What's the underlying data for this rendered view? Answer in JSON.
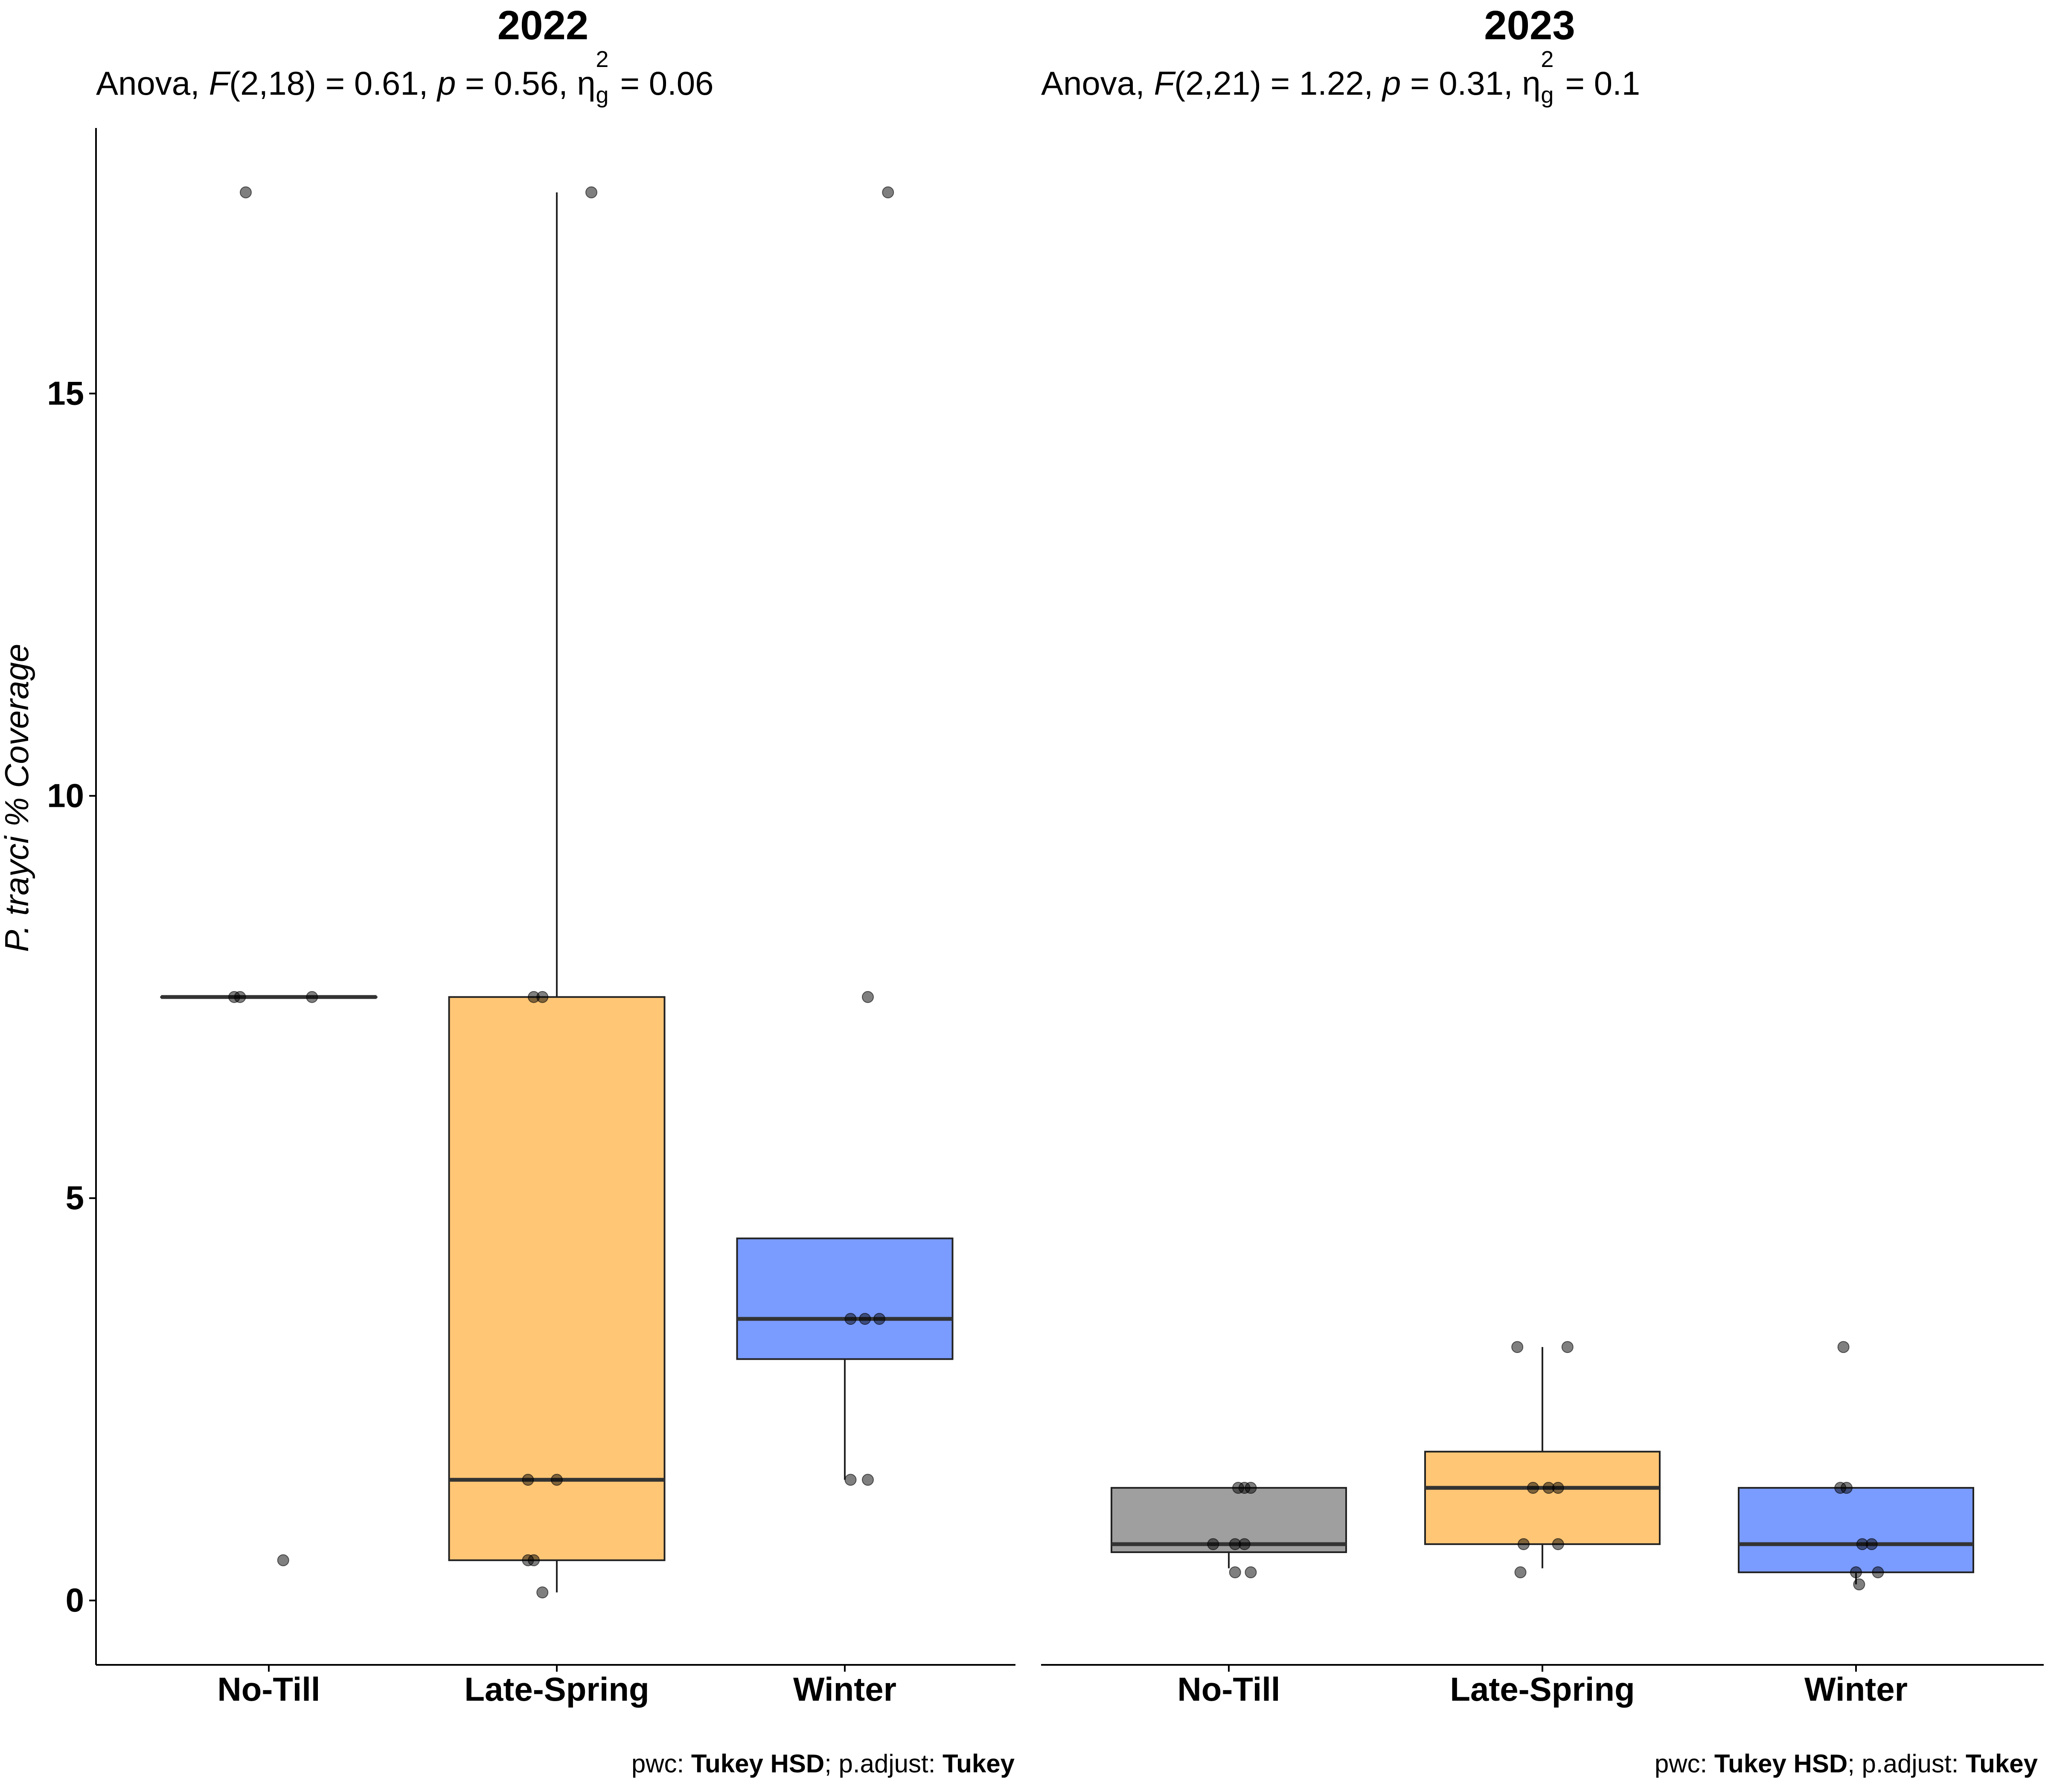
{
  "chart_data": [
    {
      "type": "box",
      "title": "2022",
      "subtitle": {
        "test": "Anova, ",
        "f_sym": "F",
        "df": "(2,18)",
        "f_val": " = 0.61, ",
        "p_sym": "p",
        "p_val": " = 0.56, ",
        "eta_sym": "η",
        "eta_sup": "2",
        "eta_sub": "g",
        "eta_val": " = 0.06"
      },
      "caption": {
        "pwc_lbl": "pwc: ",
        "pwc": "Tukey HSD",
        "adj_lbl": "; p.adjust: ",
        "adj": "Tukey"
      },
      "ylabel": "P. trayci % Coverage",
      "ylim": [
        -0.8,
        18.3
      ],
      "yticks": [
        0,
        5,
        10,
        15
      ],
      "categories": [
        "No-Till",
        "Late-Spring",
        "Winter"
      ],
      "boxes": [
        {
          "name": "No-Till",
          "color": "#7f7f7f",
          "q1": 7.5,
          "median": 7.5,
          "q3": 7.5,
          "wlo": 7.5,
          "whi": 7.5,
          "points": [
            [
              -0.08,
              17.5
            ],
            [
              -0.12,
              7.5
            ],
            [
              -0.1,
              7.5
            ],
            [
              0.15,
              7.5
            ],
            [
              0.05,
              0.5
            ]
          ]
        },
        {
          "name": "Late-Spring",
          "color": "#ffb347",
          "q1": 0.5,
          "median": 1.5,
          "q3": 7.5,
          "wlo": 0.1,
          "whi": 17.5,
          "points": [
            [
              0.12,
              17.5
            ],
            [
              -0.05,
              7.5
            ],
            [
              -0.08,
              7.5
            ],
            [
              -0.1,
              1.5
            ],
            [
              0.0,
              1.5
            ],
            [
              -0.08,
              0.5
            ],
            [
              -0.1,
              0.5
            ],
            [
              -0.05,
              0.1
            ]
          ]
        },
        {
          "name": "Winter",
          "color": "#4d79ff",
          "q1": 3.0,
          "median": 3.5,
          "q3": 4.5,
          "wlo": 1.5,
          "whi": 4.5,
          "points": [
            [
              0.15,
              17.5
            ],
            [
              0.08,
              7.5
            ],
            [
              0.02,
              3.5
            ],
            [
              0.07,
              3.5
            ],
            [
              0.12,
              3.5
            ],
            [
              0.02,
              1.5
            ],
            [
              0.08,
              1.5
            ]
          ]
        }
      ]
    },
    {
      "type": "box",
      "title": "2023",
      "subtitle": {
        "test": "Anova, ",
        "f_sym": "F",
        "df": "(2,21)",
        "f_val": " = 1.22, ",
        "p_sym": "p",
        "p_val": " = 0.31, ",
        "eta_sym": "η",
        "eta_sup": "2",
        "eta_sub": "g",
        "eta_val": " = 0.1"
      },
      "caption": {
        "pwc_lbl": "pwc: ",
        "pwc": "Tukey HSD",
        "adj_lbl": "; p.adjust: ",
        "adj": "Tukey"
      },
      "ylim": [
        -0.8,
        18.3
      ],
      "categories": [
        "No-Till",
        "Late-Spring",
        "Winter"
      ],
      "boxes": [
        {
          "name": "No-Till",
          "color": "#7f7f7f",
          "q1": 0.6,
          "median": 0.7,
          "q3": 1.4,
          "wlo": 0.4,
          "whi": 1.4,
          "points": [
            [
              0.03,
              1.4
            ],
            [
              0.05,
              1.4
            ],
            [
              0.07,
              1.4
            ],
            [
              -0.05,
              0.7
            ],
            [
              0.02,
              0.7
            ],
            [
              0.05,
              0.7
            ],
            [
              0.02,
              0.35
            ],
            [
              0.07,
              0.35
            ]
          ]
        },
        {
          "name": "Late-Spring",
          "color": "#ffb347",
          "q1": 0.7,
          "median": 1.4,
          "q3": 1.85,
          "wlo": 0.4,
          "whi": 3.15,
          "points": [
            [
              -0.08,
              3.15
            ],
            [
              0.08,
              3.15
            ],
            [
              -0.03,
              1.4
            ],
            [
              0.02,
              1.4
            ],
            [
              0.05,
              1.4
            ],
            [
              -0.06,
              0.7
            ],
            [
              0.05,
              0.7
            ],
            [
              -0.07,
              0.35
            ]
          ]
        },
        {
          "name": "Winter",
          "color": "#4d79ff",
          "q1": 0.35,
          "median": 0.7,
          "q3": 1.4,
          "wlo": 0.2,
          "whi": 1.4,
          "points": [
            [
              -0.04,
              3.15
            ],
            [
              -0.05,
              1.4
            ],
            [
              -0.03,
              1.4
            ],
            [
              0.02,
              0.7
            ],
            [
              0.05,
              0.7
            ],
            [
              0.0,
              0.35
            ],
            [
              0.07,
              0.35
            ],
            [
              0.01,
              0.2
            ]
          ]
        }
      ]
    }
  ]
}
